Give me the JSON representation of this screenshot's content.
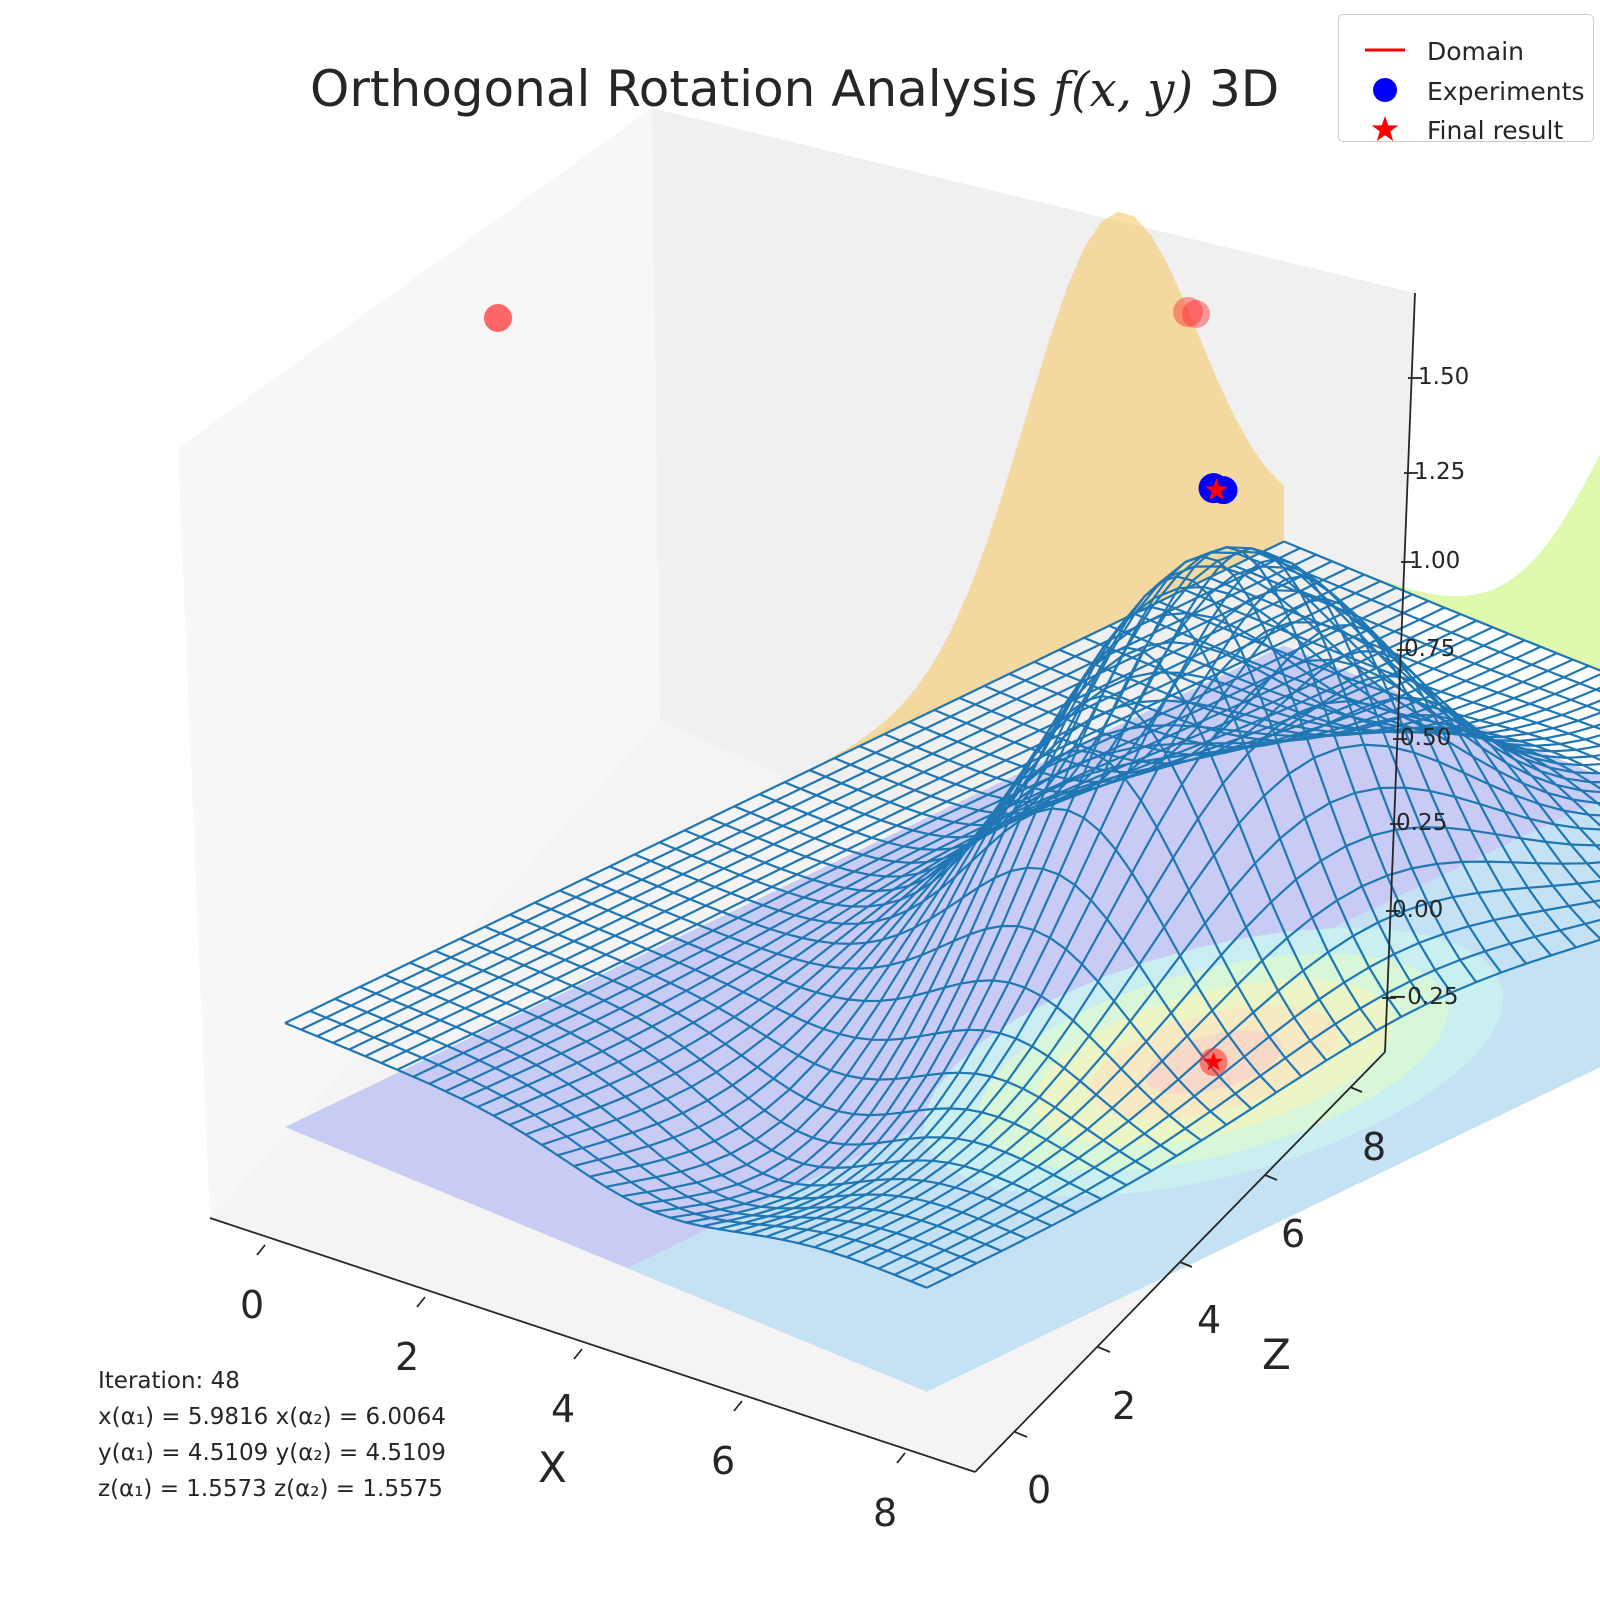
{
  "chart_data": {
    "type": "surface3d",
    "title_prefix": "Orthogonal Rotation Analysis ",
    "title_math": "f(x, y)",
    "title_suffix": " 3D",
    "xlabel": "X",
    "ylabel": "Z",
    "x_ticks": [
      "0",
      "2",
      "4",
      "6",
      "8"
    ],
    "y_ticks": [
      "0",
      "2",
      "4",
      "6",
      "8"
    ],
    "z_ticks": [
      "−0.25",
      "0.00",
      "0.25",
      "0.50",
      "0.75",
      "1.00",
      "1.25",
      "1.50"
    ],
    "xlim": [
      -0.5,
      9
    ],
    "ylim": [
      -0.5,
      9
    ],
    "zlim": [
      -0.4,
      1.7
    ],
    "grid": false,
    "legend_position": "top-right",
    "legend": [
      {
        "label": "Domain",
        "marker": "line",
        "color": "#ff0000"
      },
      {
        "label": "Experiments",
        "marker": "circle",
        "color": "#0000ff"
      },
      {
        "label": "Final result",
        "marker": "star",
        "color": "#ff0000"
      }
    ],
    "final_point": {
      "x": 6.0,
      "y": 4.5109,
      "z": 1.5574
    },
    "surface_color": "#1f77b4",
    "projection_colors": {
      "xz_wall": "#f5c96a",
      "yz_wall": "#c9f57a",
      "floor": "#8fd3f0"
    }
  },
  "info": {
    "iteration": "Iteration: 48",
    "x_line": "x(α₁) = 5.9816 x(α₂) = 6.0064",
    "y_line": "y(α₁) = 4.5109 y(α₂) = 4.5109",
    "z_line": "z(α₁) = 1.5573 z(α₂) = 1.5575"
  }
}
